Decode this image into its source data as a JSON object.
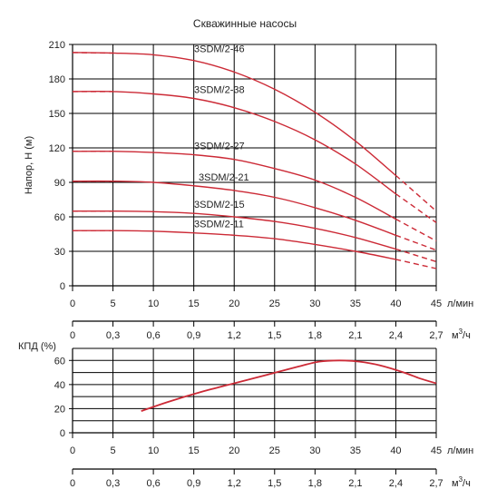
{
  "colors": {
    "curve": "#cc2a36",
    "axis": "#000000",
    "text": "#222222"
  },
  "chart_data": [
    {
      "type": "line",
      "title": "Скважинные насосы",
      "ylabel": "Напор, Н (м)",
      "xlabel": "л/мин",
      "xlabel2": "м³/ч",
      "xlabel2_base": "м",
      "xlabel2_sup": "3",
      "xlabel2_tail": "/ч",
      "xlim": [
        0,
        45
      ],
      "ylim": [
        0,
        210
      ],
      "x_ticks": [
        0,
        5,
        10,
        15,
        20,
        25,
        30,
        35,
        40,
        45
      ],
      "x2_ticks": [
        "0",
        "0,3",
        "0,6",
        "0,9",
        "1,2",
        "1,5",
        "1,8",
        "2,1",
        "2,4",
        "2,7"
      ],
      "y_ticks": [
        0,
        30,
        60,
        90,
        120,
        150,
        180,
        210
      ],
      "grid": true,
      "series": [
        {
          "name": "3SDM/2-46",
          "solid": [
            [
              0,
              203
            ],
            [
              5,
              202.5
            ],
            [
              10,
              201
            ],
            [
              15,
              196
            ],
            [
              20,
              186
            ],
            [
              25,
              171
            ],
            [
              30,
              151
            ],
            [
              35,
              126
            ],
            [
              40,
              96
            ]
          ],
          "dash_start": [
            [
              0,
              203
            ],
            [
              5,
              202.5
            ]
          ],
          "dash_end": [
            [
              40,
              96
            ],
            [
              45,
              65
            ]
          ]
        },
        {
          "name": "3SDM/2-38",
          "solid": [
            [
              0,
              169
            ],
            [
              5,
              169
            ],
            [
              10,
              167
            ],
            [
              15,
              163
            ],
            [
              20,
              155
            ],
            [
              25,
              143
            ],
            [
              30,
              127
            ],
            [
              35,
              106
            ],
            [
              40,
              80
            ]
          ],
          "dash_start": [
            [
              0,
              169
            ],
            [
              5,
              169
            ]
          ],
          "dash_end": [
            [
              40,
              80
            ],
            [
              45,
              55
            ]
          ]
        },
        {
          "name": "3SDM/2-27",
          "solid": [
            [
              0,
              117
            ],
            [
              5,
              117
            ],
            [
              10,
              116
            ],
            [
              15,
              114
            ],
            [
              20,
              110
            ],
            [
              25,
              102
            ],
            [
              30,
              92
            ],
            [
              35,
              77
            ],
            [
              40,
              58
            ]
          ],
          "dash_start": [
            [
              0,
              117
            ],
            [
              5,
              117
            ]
          ],
          "dash_end": [
            [
              40,
              58
            ],
            [
              45,
              39
            ]
          ]
        },
        {
          "name": "3SDM/2-21",
          "solid": [
            [
              0,
              91
            ],
            [
              5,
              91
            ],
            [
              10,
              90
            ],
            [
              15,
              87
            ],
            [
              20,
              83
            ],
            [
              25,
              77
            ],
            [
              30,
              68
            ],
            [
              35,
              57
            ],
            [
              40,
              44
            ]
          ],
          "dash_start": [
            [
              0,
              91
            ],
            [
              5,
              91
            ]
          ],
          "dash_end": [
            [
              40,
              44
            ],
            [
              45,
              31
            ]
          ]
        },
        {
          "name": "3SDM/2-15",
          "solid": [
            [
              0,
              65
            ],
            [
              5,
              65
            ],
            [
              10,
              64.5
            ],
            [
              15,
              63
            ],
            [
              20,
              60
            ],
            [
              25,
              56
            ],
            [
              30,
              50
            ],
            [
              35,
              42
            ],
            [
              40,
              32
            ]
          ],
          "dash_start": [
            [
              0,
              65
            ],
            [
              5,
              65
            ]
          ],
          "dash_end": [
            [
              40,
              32
            ],
            [
              45,
              21
            ]
          ]
        },
        {
          "name": "3SDM/2-11",
          "solid": [
            [
              0,
              48
            ],
            [
              5,
              48
            ],
            [
              10,
              47.5
            ],
            [
              15,
              46
            ],
            [
              20,
              44
            ],
            [
              25,
              41
            ],
            [
              30,
              36
            ],
            [
              35,
              30
            ],
            [
              40,
              23
            ]
          ],
          "dash_start": [
            [
              0,
              48
            ],
            [
              5,
              48
            ]
          ],
          "dash_end": [
            [
              40,
              23
            ],
            [
              45,
              15
            ]
          ]
        }
      ]
    },
    {
      "type": "line",
      "ylabel": "КПД   (%)",
      "xlabel": "л/мин",
      "xlabel2": "м³/ч",
      "xlabel2_base": "м",
      "xlabel2_sup": "3",
      "xlabel2_tail": "/ч",
      "xlim": [
        0,
        45
      ],
      "ylim": [
        0,
        70
      ],
      "x_ticks": [
        0,
        5,
        10,
        15,
        20,
        25,
        30,
        35,
        40,
        45
      ],
      "x2_ticks": [
        "0",
        "0,3",
        "0,6",
        "0,9",
        "1,2",
        "1,5",
        "1,8",
        "2,1",
        "2,4",
        "2,7"
      ],
      "y_ticks": [
        0,
        20,
        40,
        60
      ],
      "grid": true,
      "series": [
        {
          "name": "",
          "solid": [
            [
              8.5,
              18
            ],
            [
              12,
              26
            ],
            [
              16,
              34
            ],
            [
              20,
              41
            ],
            [
              24,
              48
            ],
            [
              28,
              55
            ],
            [
              30.5,
              59
            ],
            [
              33,
              60
            ],
            [
              35.5,
              59
            ],
            [
              38,
              56
            ],
            [
              41,
              50
            ],
            [
              43,
              45
            ],
            [
              45,
              41
            ]
          ]
        }
      ]
    }
  ]
}
